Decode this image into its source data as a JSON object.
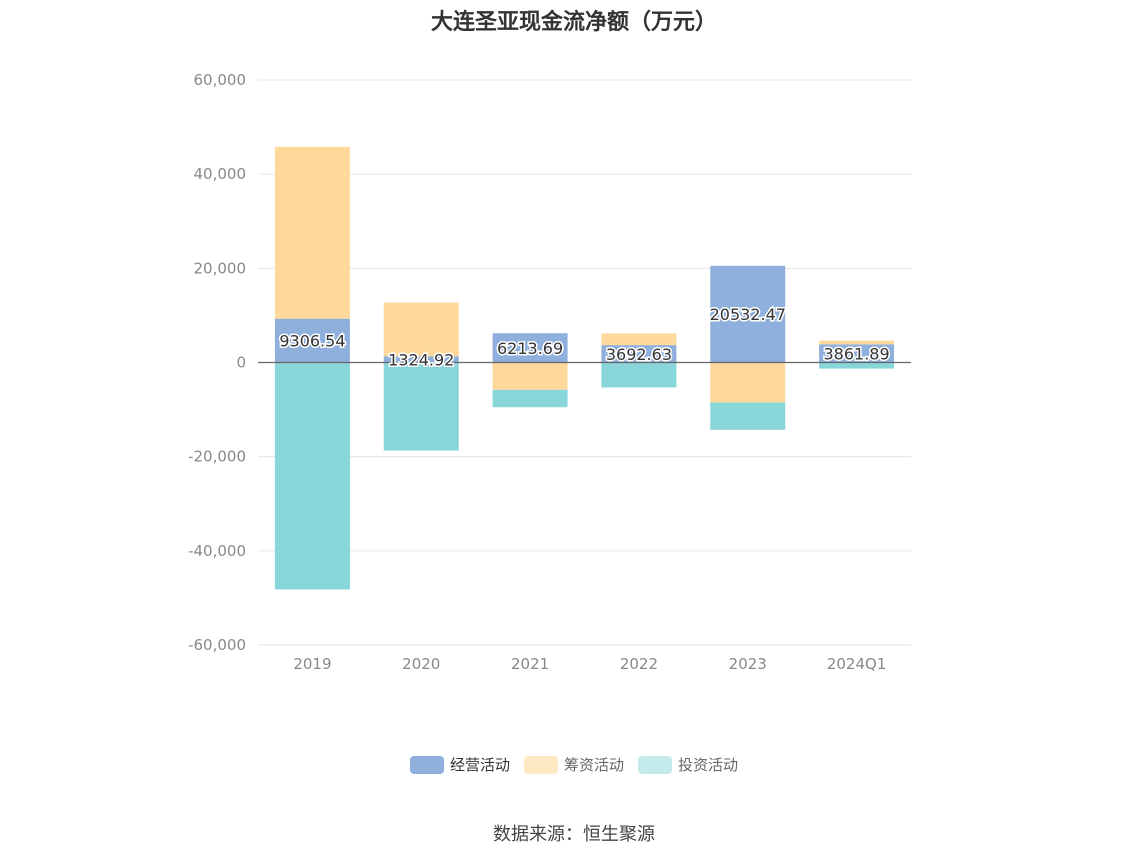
{
  "chart_data": {
    "type": "bar",
    "stacked": true,
    "title": "大连圣亚现金流净额（万元）",
    "categories": [
      "2019",
      "2020",
      "2021",
      "2022",
      "2023",
      "2024Q1"
    ],
    "ylim": [
      -60000,
      60000
    ],
    "yticks": [
      60000,
      40000,
      20000,
      0,
      -20000,
      -40000,
      -60000
    ],
    "ytick_labels": [
      "60,000",
      "40,000",
      "20,000",
      "0",
      "-20,000",
      "-40,000",
      "-60,000"
    ],
    "grid": true,
    "legend_position": "bottom",
    "series": [
      {
        "name": "经营活动",
        "color": "#8fb0dc",
        "values": [
          9306.54,
          1324.92,
          6213.69,
          3692.63,
          20532.47,
          3861.89
        ],
        "labels": [
          "9306.54",
          "1324.92",
          "6213.69",
          "3692.63",
          "20532.47",
          "3861.89"
        ]
      },
      {
        "name": "筹资活动",
        "color": "#fed99b",
        "values": [
          36500,
          11400,
          -5800,
          2500,
          -8500,
          800
        ]
      },
      {
        "name": "投资活动",
        "color": "#89d6da",
        "values": [
          -48200,
          -18700,
          -3700,
          -5300,
          -5800,
          -1300
        ]
      }
    ],
    "legend_colors": [
      "#8fb0dc",
      "#fde9c4",
      "#c4eaec"
    ]
  },
  "source": "数据来源：恒生聚源"
}
